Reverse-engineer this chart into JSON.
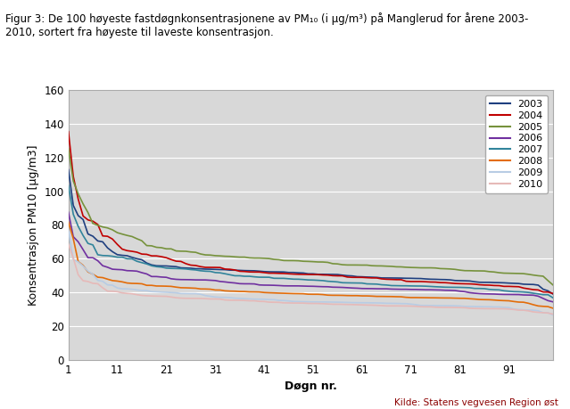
{
  "title_line1": "Figur 3: De 100 høyeste fastdøgnkonsentrasjonene av PM",
  "title_pm_sub": "10",
  "title_line1b": " (i μg/m³) på Manglerud for årene 2003-",
  "title_line2": "2010, sortert fra høyeste til laveste konsentrasjon.",
  "xlabel": "Døgn nr.",
  "ylabel": "Konsentrasjon PM10 [μg/m3]",
  "source": "Kilde: Statens vegvesen Region øst",
  "xlim": [
    1,
    100
  ],
  "ylim": [
    0,
    160
  ],
  "yticks": [
    0,
    20,
    40,
    60,
    80,
    100,
    120,
    140,
    160
  ],
  "xticks": [
    1,
    11,
    21,
    31,
    41,
    51,
    61,
    71,
    81,
    91
  ],
  "plot_bg_color": "#d8d8d8",
  "series": {
    "2003": {
      "color": "#1f3f7f",
      "peak": 111,
      "floor": 36,
      "steepness": 0.42,
      "noise": 3.5
    },
    "2004": {
      "color": "#c00000",
      "peak": 141,
      "floor": 33,
      "steepness": 0.48,
      "noise": 4.0
    },
    "2005": {
      "color": "#76923c",
      "peak": 124,
      "floor": 38,
      "steepness": 0.38,
      "noise": 3.5
    },
    "2006": {
      "color": "#7030a0",
      "peak": 90,
      "floor": 33,
      "steepness": 0.45,
      "noise": 3.0
    },
    "2007": {
      "color": "#31849b",
      "peak": 109,
      "floor": 35,
      "steepness": 0.47,
      "noise": 3.5
    },
    "2008": {
      "color": "#e36c09",
      "peak": 79,
      "floor": 30,
      "steepness": 0.44,
      "noise": 3.0
    },
    "2009": {
      "color": "#b8cce4",
      "peak": 75,
      "floor": 26,
      "steepness": 0.45,
      "noise": 2.5
    },
    "2010": {
      "color": "#e6b9b8",
      "peak": 70,
      "floor": 26,
      "steepness": 0.47,
      "noise": 2.5
    }
  }
}
